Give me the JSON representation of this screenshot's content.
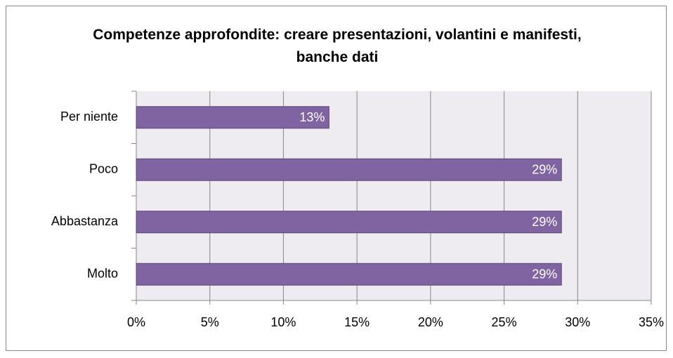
{
  "chart_data": {
    "type": "bar",
    "orientation": "horizontal",
    "title": "Competenze approfondite: creare presentazioni, volantini e manifesti, banche dati",
    "categories": [
      "Per niente",
      "Poco",
      "Abbastanza",
      "Molto"
    ],
    "values": [
      13.1,
      28.9,
      28.9,
      28.9
    ],
    "value_labels": [
      "13%",
      "29%",
      "29%",
      "29%"
    ],
    "color": "#8064a2",
    "xlim": [
      0,
      35
    ],
    "xticks": [
      {
        "value": 0,
        "label": "0%"
      },
      {
        "value": 5,
        "label": "5%"
      },
      {
        "value": 10,
        "label": "10%"
      },
      {
        "value": 15,
        "label": "15%"
      },
      {
        "value": 20,
        "label": "20%"
      },
      {
        "value": 25,
        "label": "25%"
      },
      {
        "value": 30,
        "label": "30%"
      },
      {
        "value": 35,
        "label": "35%"
      }
    ],
    "grid": true
  }
}
